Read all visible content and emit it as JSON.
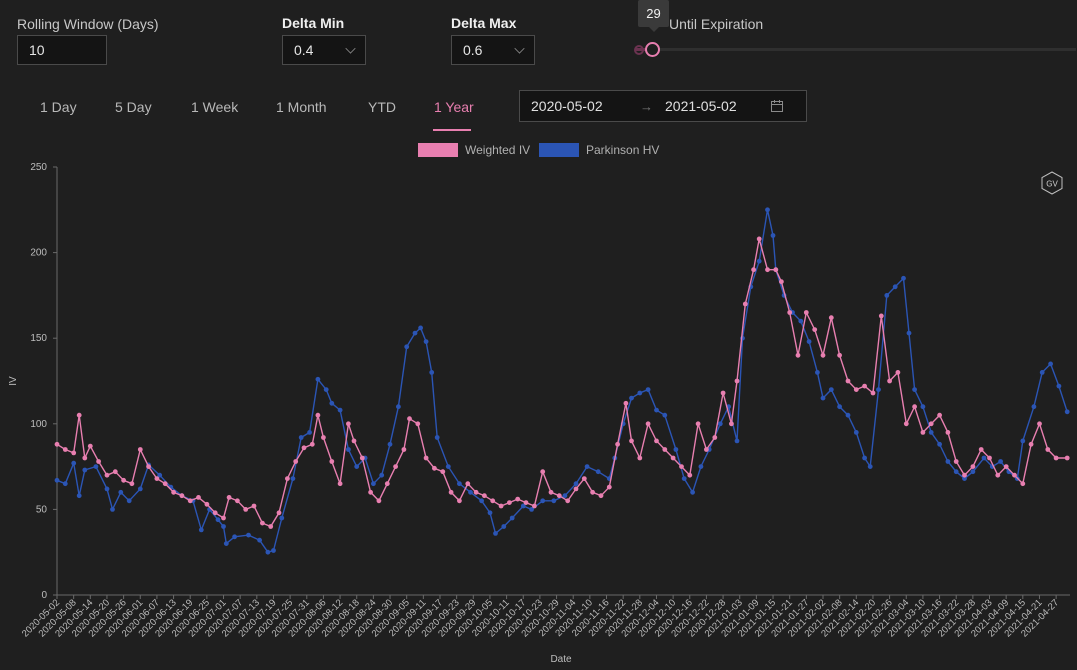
{
  "controls": {
    "rolling_label": "Rolling Window (Days)",
    "rolling_value": "10",
    "delta_min_label": "Delta Min",
    "delta_min_value": "0.4",
    "delta_max_label": "Delta Max",
    "delta_max_value": "0.6",
    "dte_label_visible": "Until Expiration",
    "dte_value": "29"
  },
  "tabs": [
    {
      "label": "1 Day"
    },
    {
      "label": "5 Day"
    },
    {
      "label": "1 Week"
    },
    {
      "label": "1 Month"
    },
    {
      "label": "YTD"
    },
    {
      "label": "1 Year",
      "active": true
    }
  ],
  "date_range": {
    "start": "2020-05-02",
    "separator": "→",
    "end": "2021-05-02"
  },
  "colors": {
    "accent": "#e87fb0",
    "weighted_iv": "#e87fb0",
    "parkinson_hv": "#2b55b5"
  },
  "icons": {
    "calendar": "calendar-icon",
    "brand": "gv-logo"
  },
  "brand_text": "GV",
  "chart_data": {
    "type": "line",
    "xlabel": "Date",
    "ylabel": "IV",
    "ylim": [
      0,
      250
    ],
    "yticks": [
      0,
      50,
      100,
      150,
      200,
      250
    ],
    "grid": false,
    "legend": "top-center",
    "xticks": [
      "2020-05-02",
      "2020-05-08",
      "2020-05-14",
      "2020-05-20",
      "2020-05-26",
      "2020-06-01",
      "2020-06-07",
      "2020-06-13",
      "2020-06-19",
      "2020-06-25",
      "2020-07-01",
      "2020-07-07",
      "2020-07-13",
      "2020-07-19",
      "2020-07-25",
      "2020-07-31",
      "2020-08-06",
      "2020-08-12",
      "2020-08-18",
      "2020-08-24",
      "2020-08-30",
      "2020-09-05",
      "2020-09-11",
      "2020-09-17",
      "2020-09-23",
      "2020-09-29",
      "2020-10-05",
      "2020-10-11",
      "2020-10-17",
      "2020-10-23",
      "2020-10-29",
      "2020-11-04",
      "2020-11-10",
      "2020-11-16",
      "2020-11-22",
      "2020-11-28",
      "2020-12-04",
      "2020-12-10",
      "2020-12-16",
      "2020-12-22",
      "2020-12-28",
      "2021-01-03",
      "2021-01-09",
      "2021-01-15",
      "2021-01-21",
      "2021-01-27",
      "2021-02-02",
      "2021-02-08",
      "2021-02-14",
      "2021-02-20",
      "2021-02-26",
      "2021-03-04",
      "2021-03-10",
      "2021-03-16",
      "2021-03-22",
      "2021-03-28",
      "2021-04-03",
      "2021-04-09",
      "2021-04-15",
      "2021-04-21",
      "2021-04-27"
    ],
    "x_start": "2020-05-02",
    "x_end": "2021-05-02",
    "series": [
      {
        "name": "Parkinson HV",
        "color": "#2b55b5",
        "points": [
          [
            "2020-05-02",
            67
          ],
          [
            "2020-05-05",
            65
          ],
          [
            "2020-05-08",
            77
          ],
          [
            "2020-05-10",
            58
          ],
          [
            "2020-05-12",
            73
          ],
          [
            "2020-05-16",
            75
          ],
          [
            "2020-05-20",
            62
          ],
          [
            "2020-05-22",
            50
          ],
          [
            "2020-05-25",
            60
          ],
          [
            "2020-05-28",
            55
          ],
          [
            "2020-06-01",
            62
          ],
          [
            "2020-06-04",
            76
          ],
          [
            "2020-06-08",
            70
          ],
          [
            "2020-06-12",
            63
          ],
          [
            "2020-06-16",
            58
          ],
          [
            "2020-06-20",
            55
          ],
          [
            "2020-06-23",
            38
          ],
          [
            "2020-06-26",
            50
          ],
          [
            "2020-06-29",
            44
          ],
          [
            "2020-07-01",
            40
          ],
          [
            "2020-07-02",
            30
          ],
          [
            "2020-07-05",
            34
          ],
          [
            "2020-07-10",
            35
          ],
          [
            "2020-07-14",
            32
          ],
          [
            "2020-07-17",
            25
          ],
          [
            "2020-07-19",
            26
          ],
          [
            "2020-07-22",
            45
          ],
          [
            "2020-07-26",
            68
          ],
          [
            "2020-07-29",
            92
          ],
          [
            "2020-08-01",
            95
          ],
          [
            "2020-08-04",
            126
          ],
          [
            "2020-08-07",
            120
          ],
          [
            "2020-08-09",
            112
          ],
          [
            "2020-08-12",
            108
          ],
          [
            "2020-08-15",
            85
          ],
          [
            "2020-08-18",
            75
          ],
          [
            "2020-08-21",
            80
          ],
          [
            "2020-08-24",
            65
          ],
          [
            "2020-08-27",
            70
          ],
          [
            "2020-08-30",
            88
          ],
          [
            "2020-09-02",
            110
          ],
          [
            "2020-09-05",
            145
          ],
          [
            "2020-09-08",
            153
          ],
          [
            "2020-09-10",
            156
          ],
          [
            "2020-09-12",
            148
          ],
          [
            "2020-09-14",
            130
          ],
          [
            "2020-09-16",
            92
          ],
          [
            "2020-09-20",
            75
          ],
          [
            "2020-09-24",
            65
          ],
          [
            "2020-09-28",
            60
          ],
          [
            "2020-10-02",
            55
          ],
          [
            "2020-10-05",
            48
          ],
          [
            "2020-10-07",
            36
          ],
          [
            "2020-10-10",
            40
          ],
          [
            "2020-10-13",
            45
          ],
          [
            "2020-10-17",
            52
          ],
          [
            "2020-10-20",
            50
          ],
          [
            "2020-10-24",
            55
          ],
          [
            "2020-10-28",
            55
          ],
          [
            "2020-11-01",
            58
          ],
          [
            "2020-11-05",
            65
          ],
          [
            "2020-11-09",
            75
          ],
          [
            "2020-11-13",
            72
          ],
          [
            "2020-11-17",
            68
          ],
          [
            "2020-11-19",
            80
          ],
          [
            "2020-11-22",
            100
          ],
          [
            "2020-11-25",
            115
          ],
          [
            "2020-11-28",
            118
          ],
          [
            "2020-12-01",
            120
          ],
          [
            "2020-12-04",
            108
          ],
          [
            "2020-12-07",
            105
          ],
          [
            "2020-12-11",
            85
          ],
          [
            "2020-12-14",
            68
          ],
          [
            "2020-12-17",
            60
          ],
          [
            "2020-12-20",
            75
          ],
          [
            "2020-12-23",
            85
          ],
          [
            "2020-12-27",
            100
          ],
          [
            "2020-12-30",
            110
          ],
          [
            "2021-01-02",
            90
          ],
          [
            "2021-01-04",
            150
          ],
          [
            "2021-01-07",
            180
          ],
          [
            "2021-01-10",
            195
          ],
          [
            "2021-01-13",
            225
          ],
          [
            "2021-01-15",
            210
          ],
          [
            "2021-01-16",
            190
          ],
          [
            "2021-01-19",
            175
          ],
          [
            "2021-01-22",
            165
          ],
          [
            "2021-01-25",
            160
          ],
          [
            "2021-01-28",
            148
          ],
          [
            "2021-01-31",
            130
          ],
          [
            "2021-02-02",
            115
          ],
          [
            "2021-02-05",
            120
          ],
          [
            "2021-02-08",
            110
          ],
          [
            "2021-02-11",
            105
          ],
          [
            "2021-02-14",
            95
          ],
          [
            "2021-02-17",
            80
          ],
          [
            "2021-02-19",
            75
          ],
          [
            "2021-02-22",
            120
          ],
          [
            "2021-02-25",
            175
          ],
          [
            "2021-02-28",
            180
          ],
          [
            "2021-03-03",
            185
          ],
          [
            "2021-03-05",
            153
          ],
          [
            "2021-03-07",
            120
          ],
          [
            "2021-03-10",
            110
          ],
          [
            "2021-03-13",
            95
          ],
          [
            "2021-03-16",
            88
          ],
          [
            "2021-03-19",
            78
          ],
          [
            "2021-03-22",
            72
          ],
          [
            "2021-03-25",
            68
          ],
          [
            "2021-03-28",
            72
          ],
          [
            "2021-04-01",
            80
          ],
          [
            "2021-04-04",
            75
          ],
          [
            "2021-04-07",
            78
          ],
          [
            "2021-04-10",
            72
          ],
          [
            "2021-04-13",
            68
          ],
          [
            "2021-04-15",
            90
          ],
          [
            "2021-04-19",
            110
          ],
          [
            "2021-04-22",
            130
          ],
          [
            "2021-04-25",
            135
          ],
          [
            "2021-04-28",
            122
          ],
          [
            "2021-05-01",
            107
          ]
        ]
      },
      {
        "name": "Weighted IV",
        "color": "#e87fb0",
        "points": [
          [
            "2020-05-02",
            88
          ],
          [
            "2020-05-05",
            85
          ],
          [
            "2020-05-08",
            83
          ],
          [
            "2020-05-10",
            105
          ],
          [
            "2020-05-12",
            80
          ],
          [
            "2020-05-14",
            87
          ],
          [
            "2020-05-17",
            78
          ],
          [
            "2020-05-20",
            70
          ],
          [
            "2020-05-23",
            72
          ],
          [
            "2020-05-26",
            67
          ],
          [
            "2020-05-29",
            65
          ],
          [
            "2020-06-01",
            85
          ],
          [
            "2020-06-04",
            75
          ],
          [
            "2020-06-07",
            68
          ],
          [
            "2020-06-10",
            65
          ],
          [
            "2020-06-13",
            60
          ],
          [
            "2020-06-16",
            58
          ],
          [
            "2020-06-19",
            55
          ],
          [
            "2020-06-22",
            57
          ],
          [
            "2020-06-25",
            53
          ],
          [
            "2020-06-28",
            48
          ],
          [
            "2020-07-01",
            45
          ],
          [
            "2020-07-03",
            57
          ],
          [
            "2020-07-06",
            55
          ],
          [
            "2020-07-09",
            50
          ],
          [
            "2020-07-12",
            52
          ],
          [
            "2020-07-15",
            42
          ],
          [
            "2020-07-18",
            40
          ],
          [
            "2020-07-21",
            48
          ],
          [
            "2020-07-24",
            68
          ],
          [
            "2020-07-27",
            78
          ],
          [
            "2020-07-30",
            86
          ],
          [
            "2020-08-02",
            88
          ],
          [
            "2020-08-04",
            105
          ],
          [
            "2020-08-06",
            92
          ],
          [
            "2020-08-09",
            78
          ],
          [
            "2020-08-12",
            65
          ],
          [
            "2020-08-15",
            100
          ],
          [
            "2020-08-17",
            90
          ],
          [
            "2020-08-20",
            80
          ],
          [
            "2020-08-23",
            60
          ],
          [
            "2020-08-26",
            55
          ],
          [
            "2020-08-29",
            65
          ],
          [
            "2020-09-01",
            75
          ],
          [
            "2020-09-04",
            85
          ],
          [
            "2020-09-06",
            103
          ],
          [
            "2020-09-09",
            100
          ],
          [
            "2020-09-12",
            80
          ],
          [
            "2020-09-15",
            74
          ],
          [
            "2020-09-18",
            72
          ],
          [
            "2020-09-21",
            60
          ],
          [
            "2020-09-24",
            55
          ],
          [
            "2020-09-27",
            65
          ],
          [
            "2020-09-30",
            60
          ],
          [
            "2020-10-03",
            58
          ],
          [
            "2020-10-06",
            55
          ],
          [
            "2020-10-09",
            52
          ],
          [
            "2020-10-12",
            54
          ],
          [
            "2020-10-15",
            56
          ],
          [
            "2020-10-18",
            54
          ],
          [
            "2020-10-21",
            52
          ],
          [
            "2020-10-24",
            72
          ],
          [
            "2020-10-27",
            60
          ],
          [
            "2020-10-30",
            58
          ],
          [
            "2020-11-02",
            55
          ],
          [
            "2020-11-05",
            62
          ],
          [
            "2020-11-08",
            68
          ],
          [
            "2020-11-11",
            60
          ],
          [
            "2020-11-14",
            58
          ],
          [
            "2020-11-17",
            63
          ],
          [
            "2020-11-20",
            88
          ],
          [
            "2020-11-23",
            112
          ],
          [
            "2020-11-25",
            90
          ],
          [
            "2020-11-28",
            80
          ],
          [
            "2020-12-01",
            100
          ],
          [
            "2020-12-04",
            90
          ],
          [
            "2020-12-07",
            85
          ],
          [
            "2020-12-10",
            80
          ],
          [
            "2020-12-13",
            75
          ],
          [
            "2020-12-16",
            70
          ],
          [
            "2020-12-19",
            100
          ],
          [
            "2020-12-22",
            85
          ],
          [
            "2020-12-25",
            92
          ],
          [
            "2020-12-28",
            118
          ],
          [
            "2020-12-31",
            100
          ],
          [
            "2021-01-02",
            125
          ],
          [
            "2021-01-05",
            170
          ],
          [
            "2021-01-08",
            190
          ],
          [
            "2021-01-10",
            208
          ],
          [
            "2021-01-13",
            190
          ],
          [
            "2021-01-16",
            190
          ],
          [
            "2021-01-18",
            183
          ],
          [
            "2021-01-21",
            165
          ],
          [
            "2021-01-24",
            140
          ],
          [
            "2021-01-27",
            165
          ],
          [
            "2021-01-30",
            155
          ],
          [
            "2021-02-02",
            140
          ],
          [
            "2021-02-05",
            162
          ],
          [
            "2021-02-08",
            140
          ],
          [
            "2021-02-11",
            125
          ],
          [
            "2021-02-14",
            120
          ],
          [
            "2021-02-17",
            122
          ],
          [
            "2021-02-20",
            118
          ],
          [
            "2021-02-23",
            163
          ],
          [
            "2021-02-26",
            125
          ],
          [
            "2021-03-01",
            130
          ],
          [
            "2021-03-04",
            100
          ],
          [
            "2021-03-07",
            110
          ],
          [
            "2021-03-10",
            95
          ],
          [
            "2021-03-13",
            100
          ],
          [
            "2021-03-16",
            105
          ],
          [
            "2021-03-19",
            95
          ],
          [
            "2021-03-22",
            78
          ],
          [
            "2021-03-25",
            70
          ],
          [
            "2021-03-28",
            75
          ],
          [
            "2021-03-31",
            85
          ],
          [
            "2021-04-03",
            80
          ],
          [
            "2021-04-06",
            70
          ],
          [
            "2021-04-09",
            75
          ],
          [
            "2021-04-12",
            70
          ],
          [
            "2021-04-15",
            65
          ],
          [
            "2021-04-18",
            88
          ],
          [
            "2021-04-21",
            100
          ],
          [
            "2021-04-24",
            85
          ],
          [
            "2021-04-27",
            80
          ],
          [
            "2021-05-01",
            80
          ]
        ]
      }
    ]
  }
}
